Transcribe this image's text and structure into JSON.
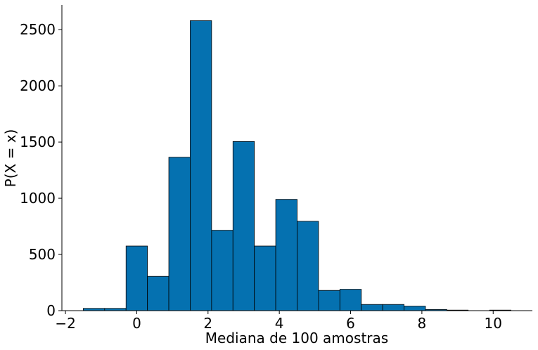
{
  "chart_data": {
    "type": "histogram",
    "x_label": "Mediana de 100 amostras",
    "y_label": "P(X = x)",
    "bins": [
      -1.5,
      -0.9,
      -0.3,
      0.3,
      0.9,
      1.5,
      2.1,
      2.7,
      3.3,
      3.9,
      4.5,
      5.1,
      5.7,
      6.3,
      6.9,
      7.5,
      8.1,
      8.7,
      9.3,
      9.9,
      10.5
    ],
    "values": [
      20,
      20,
      575,
      305,
      1365,
      2580,
      715,
      1505,
      575,
      990,
      795,
      180,
      190,
      55,
      55,
      40,
      10,
      5,
      0,
      5
    ],
    "color": "#0571b0",
    "edgecolor": "#000000",
    "xlim": [
      -2.1,
      11.1
    ],
    "ylim": [
      0,
      2720
    ],
    "xticks": [
      {
        "value": -2,
        "label": "−2"
      },
      0,
      2,
      4,
      6,
      8,
      10
    ],
    "yticks": [
      0,
      500,
      1000,
      1500,
      2000,
      2500
    ]
  }
}
